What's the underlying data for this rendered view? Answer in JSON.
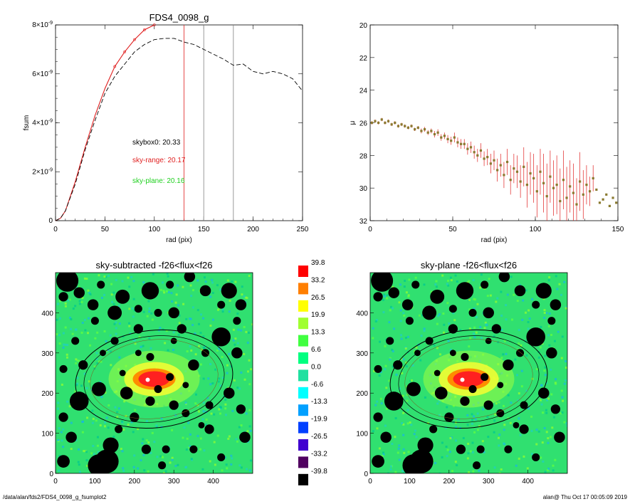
{
  "chart_data": [
    {
      "type": "line",
      "title": "FDS4_0098_g",
      "xlabel": "rad (pix)",
      "ylabel": "fsum",
      "xlim": [
        0,
        250
      ],
      "ylim": [
        0,
        8e-09
      ],
      "x_ticks": [
        "0",
        "50",
        "100",
        "150",
        "200",
        "250"
      ],
      "y_ticks": [
        {
          "base": "0",
          "exp": ""
        },
        {
          "base": "2×10",
          "exp": "-9"
        },
        {
          "base": "4×10",
          "exp": "-9"
        },
        {
          "base": "6×10",
          "exp": "-9"
        },
        {
          "base": "8×10",
          "exp": "-9"
        }
      ],
      "series": [
        {
          "color": "#e02020",
          "x": [
            0,
            5,
            10,
            20,
            30,
            40,
            50,
            60,
            70,
            80,
            90,
            100
          ],
          "y": [
            0,
            1e-10,
            4e-10,
            1.6e-09,
            3e-09,
            4.3e-09,
            5.4e-09,
            6.3e-09,
            6.9e-09,
            7.4e-09,
            7.8e-09,
            8e-09
          ]
        },
        {
          "dashed": true,
          "color": "#000000",
          "x": [
            0,
            5,
            10,
            20,
            30,
            40,
            50,
            60,
            70,
            80,
            90,
            100,
            110,
            120,
            130,
            140,
            150,
            160,
            170,
            180,
            190,
            200,
            210,
            220,
            230,
            240,
            250
          ],
          "y": [
            0,
            1e-10,
            4e-10,
            1.5e-09,
            2.9e-09,
            4.1e-09,
            5.2e-09,
            5.9e-09,
            6.4e-09,
            6.9e-09,
            7.2e-09,
            7.4e-09,
            7.45e-09,
            7.45e-09,
            7.3e-09,
            7.2e-09,
            7e-09,
            6.8e-09,
            6.6e-09,
            6.35e-09,
            6.4e-09,
            6.1e-09,
            6e-09,
            6.1e-09,
            6e-09,
            5.8e-09,
            5.3e-09
          ]
        }
      ],
      "vlines": [
        {
          "x": 130,
          "color": "#e02020"
        },
        {
          "x": 150,
          "color": "#808080"
        },
        {
          "x": 180,
          "color": "#808080"
        }
      ],
      "annotations": [
        {
          "text": "skybox0: 20.33",
          "color": "#000000"
        },
        {
          "text": "sky-range: 20.17",
          "color": "#e02020"
        },
        {
          "text": "sky-plane: 20.16",
          "color": "#20d020"
        }
      ]
    },
    {
      "type": "scatter",
      "title": "",
      "xlabel": "rad (pix)",
      "ylabel": "μ",
      "xlim": [
        0,
        150
      ],
      "ylim": [
        32,
        20
      ],
      "x_ticks": [
        "0",
        "50",
        "100",
        "150"
      ],
      "y_ticks": [
        "20",
        "22",
        "24",
        "26",
        "28",
        "30",
        "32"
      ],
      "point_color": "#8a7a30",
      "error_color": "#e02020",
      "series": [
        {
          "x": [
            1,
            3,
            5,
            7,
            9,
            11,
            13,
            15,
            17,
            19,
            21,
            23,
            25,
            27,
            29,
            31,
            33,
            35,
            37,
            39,
            41,
            43,
            45,
            47,
            49,
            51,
            53,
            55,
            57,
            59,
            61,
            63,
            65,
            67,
            69,
            71,
            73,
            75,
            77,
            79,
            81,
            83,
            85,
            87,
            89,
            91,
            93,
            95,
            97,
            99,
            101,
            103,
            105,
            107,
            109,
            111,
            113,
            115,
            117,
            119,
            121,
            123,
            125,
            127,
            129,
            131,
            133,
            135,
            137,
            139,
            141,
            143,
            145,
            147,
            149
          ],
          "y": [
            26.0,
            25.9,
            26.0,
            25.8,
            26.0,
            25.9,
            26.1,
            26.0,
            26.2,
            26.1,
            26.2,
            26.3,
            26.2,
            26.4,
            26.3,
            26.5,
            26.4,
            26.6,
            26.5,
            26.7,
            26.6,
            26.9,
            26.8,
            27.0,
            27.1,
            26.9,
            27.2,
            27.3,
            27.3,
            27.6,
            27.5,
            27.8,
            28.0,
            27.7,
            28.2,
            28.1,
            28.5,
            28.3,
            28.9,
            28.6,
            29.2,
            28.4,
            29.5,
            28.8,
            29.0,
            29.6,
            28.7,
            29.8,
            29.1,
            29.4,
            30.2,
            29.0,
            29.7,
            30.5,
            29.3,
            30.0,
            29.8,
            30.8,
            29.5,
            30.6,
            29.9,
            30.3,
            31.0,
            29.6,
            30.4,
            29.8,
            30.2,
            29.4,
            30.1,
            30.9,
            30.7,
            30.4,
            31.1,
            30.6,
            30.9
          ],
          "err": [
            0.1,
            0.1,
            0.1,
            0.1,
            0.1,
            0.1,
            0.1,
            0.1,
            0.1,
            0.1,
            0.1,
            0.1,
            0.1,
            0.1,
            0.1,
            0.15,
            0.15,
            0.15,
            0.15,
            0.2,
            0.2,
            0.2,
            0.2,
            0.25,
            0.25,
            0.3,
            0.3,
            0.3,
            0.3,
            0.35,
            0.35,
            0.4,
            0.4,
            0.45,
            0.45,
            0.5,
            0.6,
            0.6,
            0.7,
            0.7,
            0.8,
            0.8,
            0.9,
            0.9,
            1.0,
            1.0,
            1.2,
            1.4,
            1.3,
            1.5,
            1.6,
            1.4,
            1.8,
            2.0,
            1.6,
            1.7,
            1.8,
            2.0,
            1.8,
            1.9,
            1.6,
            1.8,
            1.6,
            1.8,
            1.5,
            1.2,
            0.9,
            0.8,
            0,
            0,
            0,
            0,
            0,
            0,
            0
          ]
        }
      ]
    },
    {
      "type": "heatmap",
      "title": "sky-subtracted -f26<flux<f26",
      "xlim": [
        0,
        500
      ],
      "ylim": [
        0,
        500
      ],
      "x_ticks": [
        "0",
        "100",
        "200",
        "300",
        "400"
      ],
      "y_ticks": [
        "0",
        "100",
        "200",
        "300",
        "400"
      ]
    },
    {
      "type": "heatmap",
      "title": "sky-plane -f26<flux<f26",
      "xlim": [
        0,
        500
      ],
      "ylim": [
        0,
        500
      ],
      "x_ticks": [
        "0",
        "100",
        "200",
        "300",
        "400"
      ],
      "y_ticks": [
        "0",
        "100",
        "200",
        "300",
        "400"
      ]
    }
  ],
  "colorbar": {
    "labels": [
      "39.8",
      "33.2",
      "26.5",
      "19.9",
      "13.3",
      "6.6",
      "0.0",
      "-6.6",
      "-13.3",
      "-19.9",
      "-26.5",
      "-33.2",
      "-39.8"
    ],
    "colors": [
      "#ff0000",
      "#ff7f00",
      "#ffff00",
      "#a0ff30",
      "#40ff40",
      "#00ff80",
      "#20e0a0",
      "#00ffff",
      "#00a0ff",
      "#0040ff",
      "#4000d0",
      "#500060",
      "#000000"
    ]
  },
  "heatmap_palette": {
    "background": "#30e070",
    "mask": "#000000",
    "core": "#ff2020",
    "halo": "#ffff30"
  },
  "footer": {
    "left": "/data/alan/fds2/FDS4_0098_g_fsumplot2",
    "right": "alan@  Thu Oct 17 00:05:09 2019"
  }
}
